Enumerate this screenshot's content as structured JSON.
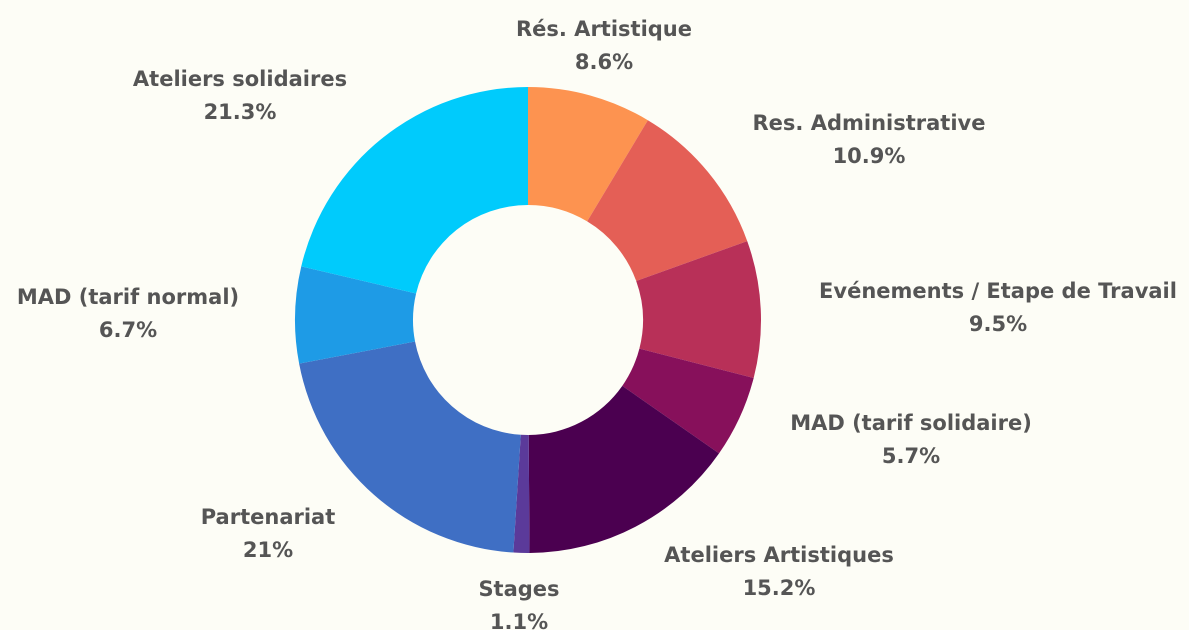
{
  "chart_data": {
    "type": "donut",
    "categories": [
      "Rés. Artistique",
      "Res. Administrative",
      "Evénements / Etape de Travail",
      "MAD (tarif solidaire)",
      "Ateliers Artistiques",
      "Stages",
      "Partenariat",
      "MAD (tarif normal)",
      "Ateliers solidaires"
    ],
    "values": [
      8.6,
      10.9,
      9.5,
      5.7,
      15.2,
      1.1,
      21,
      6.7,
      21.3
    ],
    "value_labels": [
      "8.6%",
      "10.9%",
      "9.5%",
      "5.7%",
      "15.2%",
      "1.1%",
      "21%",
      "6.7%",
      "21.3%"
    ],
    "colors": [
      "#fd9350",
      "#e45f56",
      "#b83058",
      "#87105b",
      "#4b0050",
      "#5b3a9a",
      "#3f6fc4",
      "#1e9be6",
      "#00cbfc"
    ]
  }
}
